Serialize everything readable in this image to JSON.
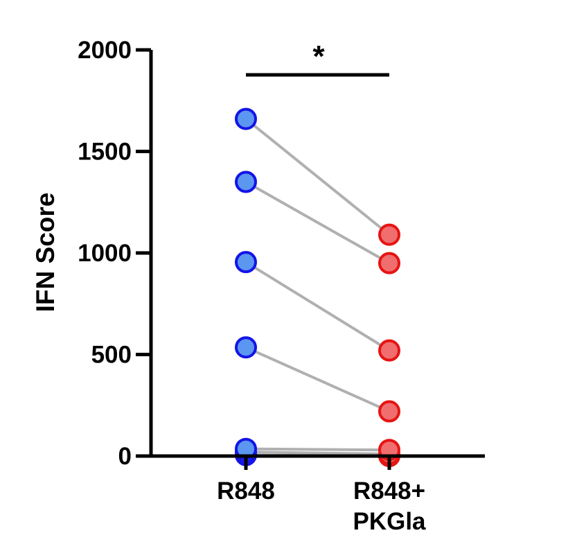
{
  "chart_data": {
    "type": "scatter",
    "ylabel": "IFN Score",
    "ylim": [
      0,
      2000
    ],
    "yticks": [
      "0",
      "500",
      "1000",
      "1500",
      "2000"
    ],
    "categories": [
      "R848",
      "R848+ PKGla"
    ],
    "category_lines": [
      [
        "R848"
      ],
      [
        "R848+",
        "PKGla"
      ]
    ],
    "paired": true,
    "significance": "*",
    "colors": {
      "R848": {
        "fill": "#5b97f0",
        "stroke": "#1414e6"
      },
      "R848+ PKGla": {
        "fill": "#f06e6e",
        "stroke": "#e61414"
      },
      "pair_line": "#b0b0b0"
    },
    "pairs": [
      [
        1660,
        1090
      ],
      [
        1350,
        950
      ],
      [
        955,
        520
      ],
      [
        535,
        220
      ],
      [
        35,
        30
      ],
      [
        20,
        10
      ],
      [
        5,
        0
      ]
    ]
  }
}
